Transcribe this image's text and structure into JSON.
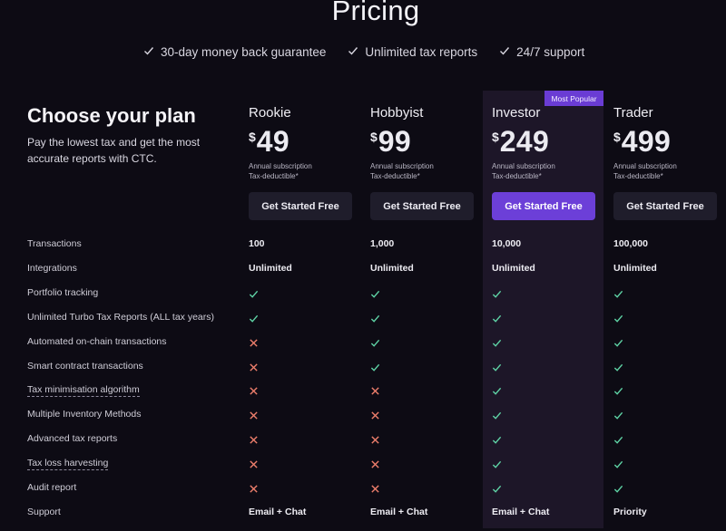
{
  "page_title": "Pricing",
  "guarantees": [
    {
      "label": "30-day money back guarantee",
      "icon": "check-icon"
    },
    {
      "label": "Unlimited tax reports",
      "icon": "check-icon"
    },
    {
      "label": "24/7 support",
      "icon": "check-icon"
    }
  ],
  "intro": {
    "heading": "Choose your plan",
    "subtitle": "Pay the lowest tax and get the most accurate reports with CTC."
  },
  "badge": "Most Popular",
  "colors": {
    "accent": "#6c3fd8",
    "check": "#5fd4a6",
    "cross": "#ef7f6c",
    "highlight_column": "#1d1628"
  },
  "plans": [
    {
      "name": "Rookie",
      "currency": "$",
      "price": "49",
      "note_line1": "Annual subscription",
      "note_line2": "Tax-deductible*",
      "button": "Get Started Free"
    },
    {
      "name": "Hobbyist",
      "currency": "$",
      "price": "99",
      "note_line1": "Annual subscription",
      "note_line2": "Tax-deductible*",
      "button": "Get Started Free"
    },
    {
      "name": "Investor",
      "currency": "$",
      "price": "249",
      "note_line1": "Annual subscription",
      "note_line2": "Tax-deductible*",
      "button": "Get Started Free"
    },
    {
      "name": "Trader",
      "currency": "$",
      "price": "499",
      "note_line1": "Annual subscription",
      "note_line2": "Tax-deductible*",
      "button": "Get Started Free"
    }
  ],
  "features": [
    {
      "label": "Transactions",
      "dotted": false,
      "values": [
        "100",
        "1,000",
        "10,000",
        "100,000"
      ]
    },
    {
      "label": "Integrations",
      "dotted": false,
      "values": [
        "Unlimited",
        "Unlimited",
        "Unlimited",
        "Unlimited"
      ]
    },
    {
      "label": "Portfolio tracking",
      "dotted": false,
      "values": [
        "check",
        "check",
        "check",
        "check"
      ]
    },
    {
      "label": "Unlimited Turbo Tax Reports (ALL tax years)",
      "dotted": false,
      "values": [
        "check",
        "check",
        "check",
        "check"
      ]
    },
    {
      "label": "Automated on-chain transactions",
      "dotted": false,
      "values": [
        "cross",
        "check",
        "check",
        "check"
      ]
    },
    {
      "label": "Smart contract transactions",
      "dotted": false,
      "values": [
        "cross",
        "check",
        "check",
        "check"
      ]
    },
    {
      "label": "Tax minimisation algorithm",
      "dotted": true,
      "values": [
        "cross",
        "cross",
        "check",
        "check"
      ]
    },
    {
      "label": "Multiple Inventory Methods",
      "dotted": false,
      "values": [
        "cross",
        "cross",
        "check",
        "check"
      ]
    },
    {
      "label": "Advanced tax reports",
      "dotted": false,
      "values": [
        "cross",
        "cross",
        "check",
        "check"
      ]
    },
    {
      "label": "Tax loss harvesting",
      "dotted": true,
      "values": [
        "cross",
        "cross",
        "check",
        "check"
      ]
    },
    {
      "label": "Audit report",
      "dotted": false,
      "values": [
        "cross",
        "cross",
        "check",
        "check"
      ]
    },
    {
      "label": "Support",
      "dotted": false,
      "values": [
        "Email + Chat",
        "Email + Chat",
        "Email + Chat",
        "Priority"
      ]
    }
  ]
}
